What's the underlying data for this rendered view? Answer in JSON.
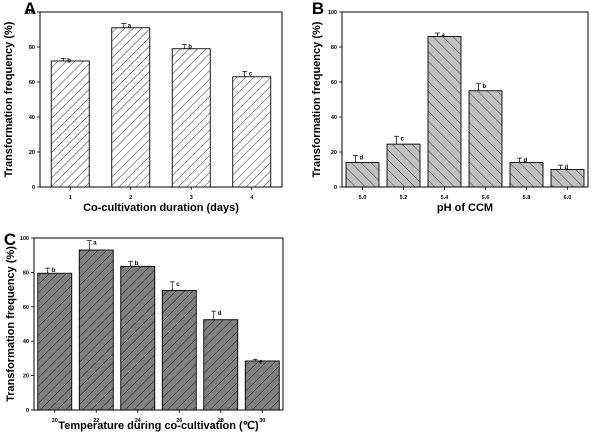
{
  "chart_data": [
    {
      "panel": "A",
      "type": "bar",
      "categories": [
        "1",
        "2",
        "3",
        "4"
      ],
      "values": [
        72,
        91,
        79,
        63
      ],
      "errors": [
        1.5,
        2.5,
        2.5,
        3
      ],
      "letters": [
        "b",
        "a",
        "b",
        "c"
      ],
      "xlabel": "Co-cultivation duration (days)",
      "ylabel": "Transformation frequency (%)",
      "ylim": [
        0,
        100
      ],
      "yticks": [
        "0",
        "20",
        "40",
        "60",
        "80",
        "100"
      ],
      "fill": "#ffffff",
      "hatch": "forward-diagonal"
    },
    {
      "panel": "B",
      "type": "bar",
      "categories": [
        "5.0",
        "5.2",
        "5.4",
        "5.6",
        "5.8",
        "6.0"
      ],
      "values": [
        14,
        24.5,
        86,
        55,
        14,
        10
      ],
      "errors": [
        4,
        4.5,
        2,
        4,
        2.5,
        2.5
      ],
      "letters": [
        "d",
        "c",
        "a",
        "b",
        "d",
        "d"
      ],
      "xlabel": "pH of CCM",
      "ylabel": "Transformation frequency (%)",
      "ylim": [
        0,
        100
      ],
      "yticks": [
        "0",
        "20",
        "40",
        "60",
        "80",
        "100"
      ],
      "fill": "#c0c0c0",
      "hatch": "back-diagonal"
    },
    {
      "panel": "C",
      "type": "bar",
      "categories": [
        "20",
        "22",
        "24",
        "26",
        "28",
        "30"
      ],
      "values": [
        79.5,
        93,
        83.5,
        69.5,
        52.5,
        28.5
      ],
      "errors": [
        3,
        5.5,
        3,
        5,
        5,
        1
      ],
      "letters": [
        "b",
        "a",
        "b",
        "c",
        "d",
        "e"
      ],
      "xlabel": "Temperature during co-cultivation (℃)",
      "ylabel": "Transformation frequency (%)",
      "ylim": [
        0,
        100
      ],
      "yticks": [
        "0",
        "20",
        "40",
        "60",
        "80",
        "100"
      ],
      "fill": "#808080",
      "hatch": "forward-diagonal"
    }
  ]
}
